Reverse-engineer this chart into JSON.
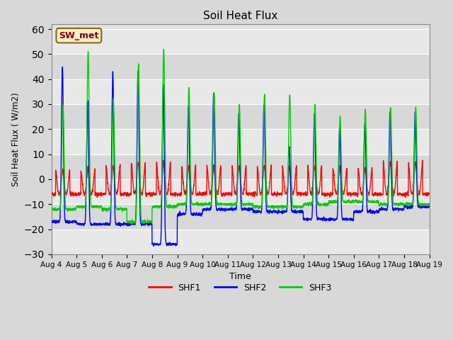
{
  "title": "Soil Heat Flux",
  "ylabel": "Soil Heat Flux (W/m2)",
  "xlabel": "Time",
  "legend_label": "SW_met",
  "series_labels": [
    "SHF1",
    "SHF2",
    "SHF3"
  ],
  "series_colors": [
    "red",
    "blue",
    "lime"
  ],
  "ylim": [
    -30,
    62
  ],
  "yticks": [
    -30,
    -20,
    -10,
    0,
    10,
    20,
    30,
    40,
    50,
    60
  ],
  "n_days": 15,
  "pts_per_day": 144,
  "background_color": "#d8d8d8",
  "plot_bg_color": "#d8d8d8",
  "legend_box_color": "#f5f0c8",
  "legend_box_edge": "#8B6914",
  "x_labels": [
    "Aug 4",
    "Aug 5",
    "Aug 6",
    "Aug 7",
    "Aug 8",
    "Aug 9",
    "Aug 10",
    "Aug 11",
    "Aug 12",
    "Aug 13",
    "Aug 14",
    "Aug 15",
    "Aug 16",
    "Aug 17",
    "Aug 18",
    "Aug 19"
  ],
  "shf1_day_peak": [
    6,
    6,
    8,
    10,
    10,
    8,
    8,
    8,
    8,
    8,
    8,
    7,
    7,
    10,
    10
  ],
  "shf1_night_val": [
    -6,
    -6,
    -6,
    -6,
    -6,
    -6,
    -6,
    -6,
    -6,
    -6,
    -6,
    -6,
    -6,
    -6,
    -6
  ],
  "shf2_day_peak": [
    45,
    32,
    43,
    43,
    38,
    29,
    34,
    27,
    30,
    13,
    26,
    21,
    22,
    27,
    27
  ],
  "shf2_night_val": [
    -17,
    -18,
    -18,
    -18,
    -26,
    -14,
    -12,
    -12,
    -13,
    -13,
    -16,
    -16,
    -13,
    -12,
    -11
  ],
  "shf3_day_peak": [
    30,
    51,
    32,
    46,
    52,
    37,
    35,
    30,
    34,
    34,
    30,
    25,
    28,
    29,
    29
  ],
  "shf3_night_val": [
    -12,
    -11,
    -12,
    -17,
    -11,
    -10,
    -10,
    -10,
    -11,
    -11,
    -10,
    -9,
    -9,
    -10,
    -10
  ]
}
